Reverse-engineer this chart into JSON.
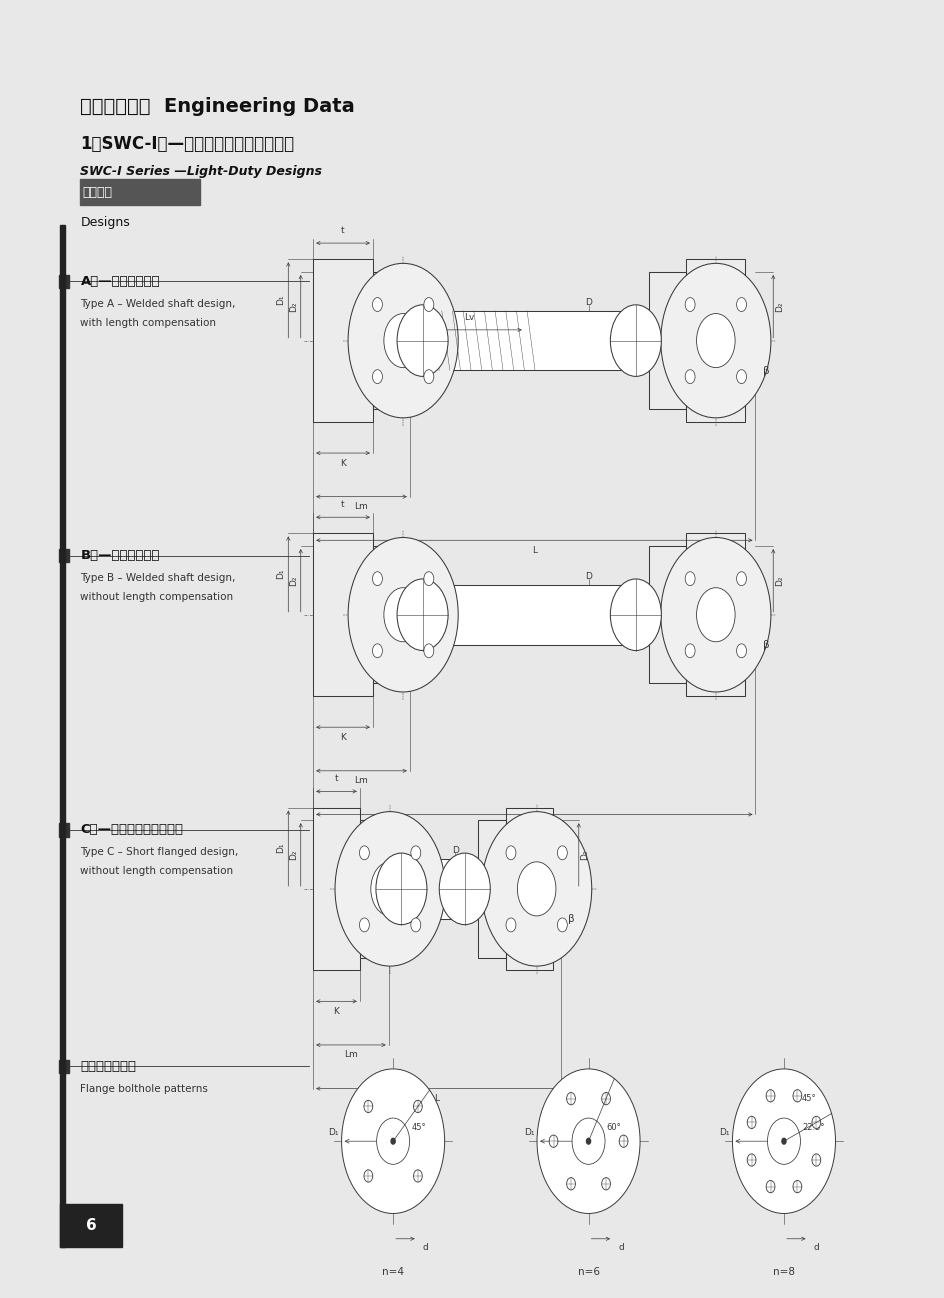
{
  "page_bg": "#e8e8e8",
  "content_bg": "#ffffff",
  "title1": "三、技术参数  Engineering Data",
  "title2": "1、SWC-I型—轻型十字轴式万向联轴器",
  "subtitle2": "SWC-I Series —Light-Duty Designs",
  "section_label": "结构形式",
  "section_eng": "Designs",
  "type_a_cn": "A型—可伸缩焊接型",
  "type_a_en1": "Type A – Welded shaft design,",
  "type_a_en2": "with length compensation",
  "type_b_cn": "B型—无伸缩焊接型",
  "type_b_en1": "Type B – Welded shaft design,",
  "type_b_en2": "without length compensation",
  "type_c_cn": "C型—无伸缩单元结构短型",
  "type_c_en1": "Type C – Short flanged design,",
  "type_c_en2": "without length compensation",
  "flange_cn": "法兰螺栓孔布置",
  "flange_en": "Flange bolthole patterns",
  "page_num": "6",
  "line_color": "#333333",
  "dim_color": "#555555",
  "drawing_color": "#444444"
}
